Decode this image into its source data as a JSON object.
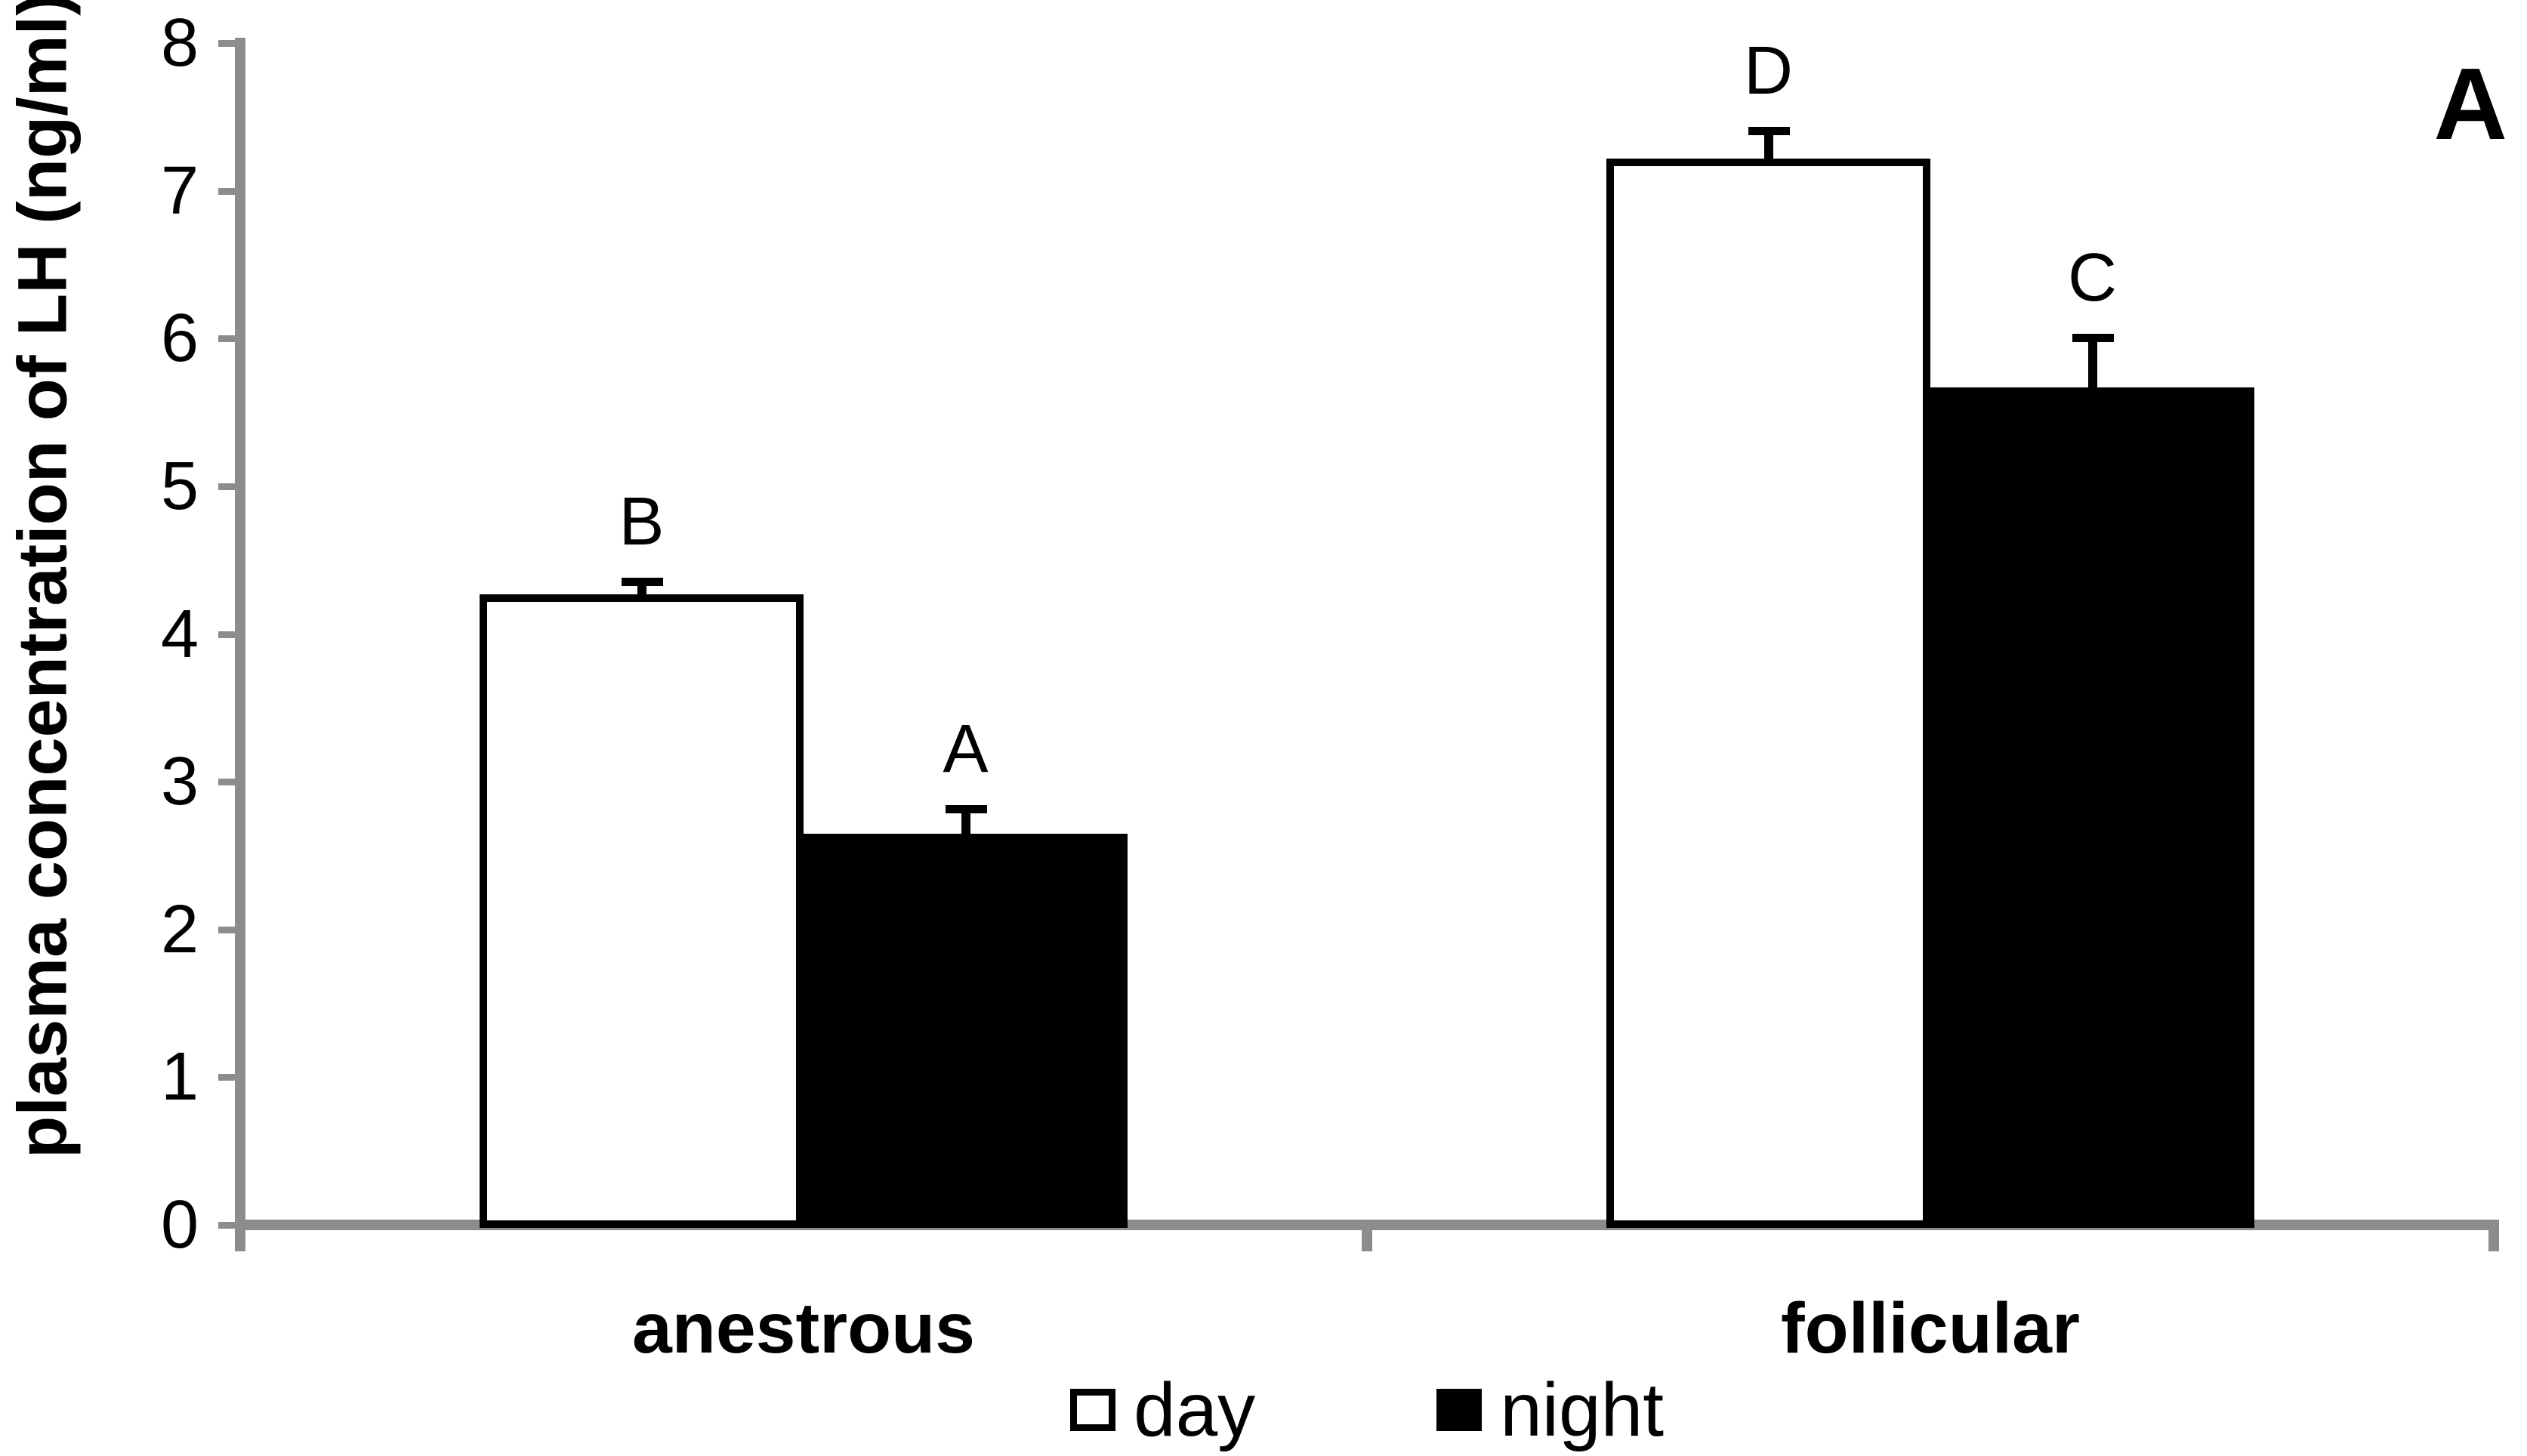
{
  "chart_data": {
    "type": "bar",
    "panel_label": "A",
    "ylabel": "plasma concentration of LH (ng/ml)",
    "xlabel": "",
    "ylim": [
      0,
      8
    ],
    "ytick_step": 1,
    "ytick_labels": [
      "0",
      "1",
      "2",
      "3",
      "4",
      "5",
      "6",
      "7",
      "8"
    ],
    "categories": [
      "anestrous",
      "follicular"
    ],
    "series": [
      {
        "name": "day",
        "fill": "#ffffff",
        "outlined": true,
        "values": [
          4.27,
          7.22
        ],
        "errors": [
          0.08,
          0.18
        ],
        "letters": [
          "B",
          "D"
        ]
      },
      {
        "name": "night",
        "fill": "#000000",
        "outlined": false,
        "values": [
          2.65,
          5.67
        ],
        "errors": [
          0.16,
          0.33
        ],
        "letters": [
          "A",
          "C"
        ]
      }
    ],
    "error_bars": "upper SEM whiskers with caps",
    "axis_color": "#8c8c8c",
    "bar_border_color": "#000000",
    "grid": "off",
    "legend_position": "bottom-center"
  }
}
